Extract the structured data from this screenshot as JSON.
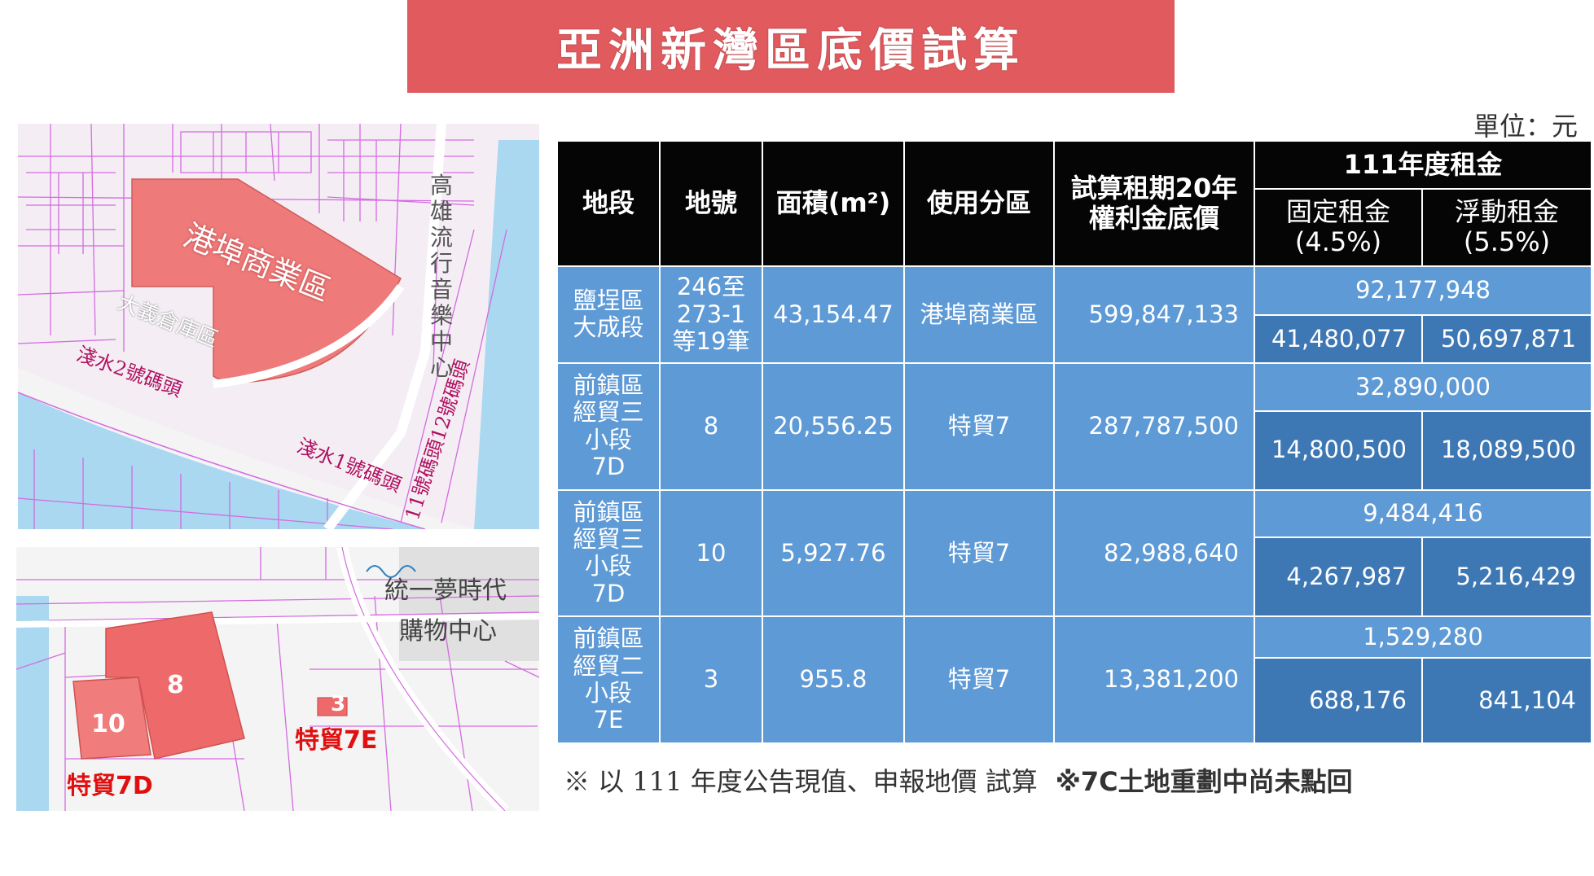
{
  "title": "亞洲新灣區底價試算",
  "unit": "單位：元",
  "map_top": {
    "zone_label": "港埠商業區",
    "building_label": "大義倉庫區",
    "music_center": [
      "高",
      "雄",
      "流",
      "行",
      "音",
      "樂",
      "中",
      "心"
    ],
    "dock2": "淺水2號碼頭",
    "dock1": "淺水1號碼頭",
    "dock11_12": "11號碼頭12號碼頭"
  },
  "map_bottom": {
    "mall_line1": "統一夢時代",
    "mall_line2": "購物中心",
    "lot8": "8",
    "lot10": "10",
    "lot3": "3",
    "zone7d": "特貿7D",
    "zone7e": "特貿7E"
  },
  "table": {
    "headers": {
      "section": "地段",
      "lot_no": "地號",
      "area": "面積(m²)",
      "zoning": "使用分區",
      "premium_line1": "試算租期20年",
      "premium_line2": "權利金底價",
      "rent": "111年度租金",
      "fixed_line1": "固定租金",
      "fixed_line2": "(4.5%)",
      "floating_line1": "浮動租金",
      "floating_line2": "(5.5%)"
    },
    "rows": [
      {
        "section": [
          "鹽埕區",
          "大成段"
        ],
        "lot_no": [
          "246至",
          "273-1",
          "等19筆"
        ],
        "area": "43,154.47",
        "zoning": "港埠商業區",
        "premium": "599,847,133",
        "rent_total": "92,177,948",
        "rent_fixed": "41,480,077",
        "rent_floating": "50,697,871"
      },
      {
        "section": [
          "前鎮區",
          "經貿三",
          "小段",
          "7D"
        ],
        "lot_no": [
          "8"
        ],
        "area": "20,556.25",
        "zoning": "特貿7",
        "premium": "287,787,500",
        "rent_total": "32,890,000",
        "rent_fixed": "14,800,500",
        "rent_floating": "18,089,500"
      },
      {
        "section": [
          "前鎮區",
          "經貿三",
          "小段",
          "7D"
        ],
        "lot_no": [
          "10"
        ],
        "area": "5,927.76",
        "zoning": "特貿7",
        "premium": "82,988,640",
        "rent_total": "9,484,416",
        "rent_fixed": "4,267,987",
        "rent_floating": "5,216,429"
      },
      {
        "section": [
          "前鎮區",
          "經貿二",
          "小段",
          "7E"
        ],
        "lot_no": [
          "3"
        ],
        "area": "955.8",
        "zoning": "特貿7",
        "premium": "13,381,200",
        "rent_total": "1,529,280",
        "rent_fixed": "688,176",
        "rent_floating": "841,104"
      }
    ]
  },
  "note": "※ 以 111 年度公告現值、申報地價 試算",
  "note2": "※7C土地重劃中尚未點回"
}
